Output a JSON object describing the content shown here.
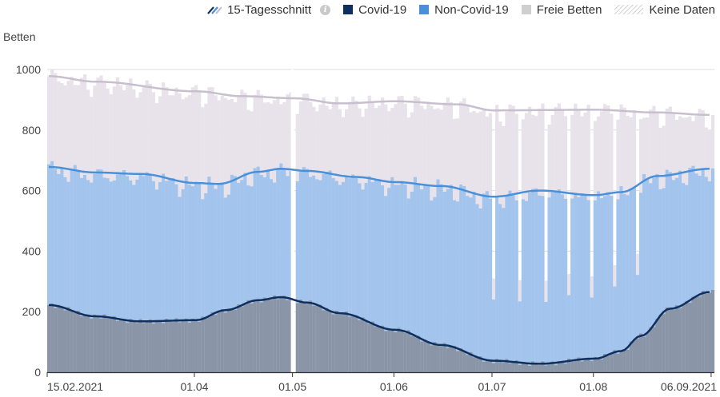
{
  "legend": {
    "avg_label": "15-Tagesschnitt",
    "covid_label": "Covid-19",
    "noncovid_label": "Non-Covid-19",
    "free_label": "Freie Betten",
    "nodata_label": "Keine Daten"
  },
  "colors": {
    "covid": "#0f2f5f",
    "covid_bar": "#8a96a8",
    "noncovid": "#4a90d9",
    "noncovid_bar": "#a3c4ec",
    "free": "#cfcfcf",
    "free_bar": "#e8e3ea",
    "free_line": "#c8bfce",
    "grid": "#d9dce6",
    "axis": "#444444"
  },
  "chart_data": {
    "type": "bar",
    "stacked": true,
    "ylabel": "Betten",
    "ylim": [
      0,
      1000
    ],
    "yticks": [
      0,
      200,
      400,
      600,
      800,
      1000
    ],
    "x_start": "2021-02-15",
    "x_end": "2021-09-07",
    "xticks": [
      {
        "date": "2021-02-15",
        "label": "15.02.2021"
      },
      {
        "date": "2021-04-01",
        "label": "01.04"
      },
      {
        "date": "2021-05-01",
        "label": "01.05"
      },
      {
        "date": "2021-06-01",
        "label": "01.06"
      },
      {
        "date": "2021-07-01",
        "label": "01.07"
      },
      {
        "date": "2021-08-01",
        "label": "01.08"
      },
      {
        "date": "2021-09-06",
        "label": "06.09.2021"
      }
    ],
    "no_data_dates": [
      "2021-05-01"
    ],
    "low_data_dates": [
      "2021-07-01",
      "2021-07-09",
      "2021-07-17",
      "2021-07-24",
      "2021-07-31",
      "2021-08-07",
      "2021-08-14"
    ],
    "covid_avg_keyframes": [
      [
        "2021-02-15",
        222
      ],
      [
        "2021-03-01",
        185
      ],
      [
        "2021-03-15",
        168
      ],
      [
        "2021-04-01",
        172
      ],
      [
        "2021-04-10",
        205
      ],
      [
        "2021-04-20",
        238
      ],
      [
        "2021-04-27",
        248
      ],
      [
        "2021-05-05",
        230
      ],
      [
        "2021-05-15",
        195
      ],
      [
        "2021-06-01",
        140
      ],
      [
        "2021-06-15",
        90
      ],
      [
        "2021-07-01",
        38
      ],
      [
        "2021-07-15",
        28
      ],
      [
        "2021-08-01",
        45
      ],
      [
        "2021-08-09",
        70
      ],
      [
        "2021-08-15",
        120
      ],
      [
        "2021-08-24",
        210
      ],
      [
        "2021-09-05",
        265
      ]
    ],
    "total_avg_keyframes": [
      [
        "2021-02-15",
        678
      ],
      [
        "2021-03-01",
        660
      ],
      [
        "2021-03-15",
        655
      ],
      [
        "2021-04-01",
        625
      ],
      [
        "2021-04-08",
        622
      ],
      [
        "2021-04-20",
        662
      ],
      [
        "2021-04-27",
        672
      ],
      [
        "2021-05-05",
        665
      ],
      [
        "2021-05-20",
        645
      ],
      [
        "2021-06-01",
        628
      ],
      [
        "2021-06-15",
        615
      ],
      [
        "2021-07-01",
        580
      ],
      [
        "2021-07-15",
        600
      ],
      [
        "2021-08-01",
        585
      ],
      [
        "2021-08-09",
        595
      ],
      [
        "2021-08-20",
        648
      ],
      [
        "2021-09-05",
        672
      ]
    ],
    "capacity_avg_keyframes": [
      [
        "2021-02-15",
        978
      ],
      [
        "2021-03-01",
        960
      ],
      [
        "2021-04-01",
        928
      ],
      [
        "2021-04-15",
        912
      ],
      [
        "2021-05-01",
        905
      ],
      [
        "2021-05-15",
        888
      ],
      [
        "2021-06-01",
        895
      ],
      [
        "2021-06-20",
        885
      ],
      [
        "2021-07-01",
        865
      ],
      [
        "2021-08-01",
        867
      ],
      [
        "2021-08-20",
        858
      ],
      [
        "2021-09-05",
        850
      ]
    ]
  }
}
